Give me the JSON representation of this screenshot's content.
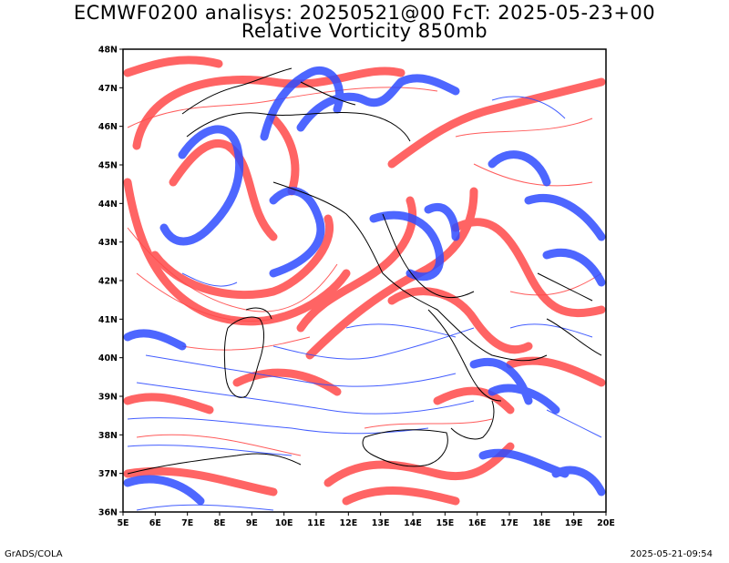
{
  "header": {
    "line1": "ECMWF0200 analisys: 20250521@00 FcT: 2025-05-23+00",
    "line2": "Relative Vorticity 850mb"
  },
  "footer": {
    "left": "GrADS/COLA",
    "right": "2025-05-21-09:54"
  },
  "map": {
    "lat_labels": [
      "48N",
      "47N",
      "46N",
      "45N",
      "44N",
      "43N",
      "42N",
      "41N",
      "40N",
      "39N",
      "38N",
      "37N",
      "36N"
    ],
    "lon_labels": [
      "5E",
      "6E",
      "7E",
      "8E",
      "9E",
      "10E",
      "11E",
      "12E",
      "13E",
      "14E",
      "15E",
      "16E",
      "17E",
      "18E",
      "19E",
      "20E"
    ],
    "colors": {
      "positive": "#ff4040",
      "negative": "#2f4cff",
      "coastline": "#000000"
    },
    "icons": [
      "map-frame"
    ]
  }
}
